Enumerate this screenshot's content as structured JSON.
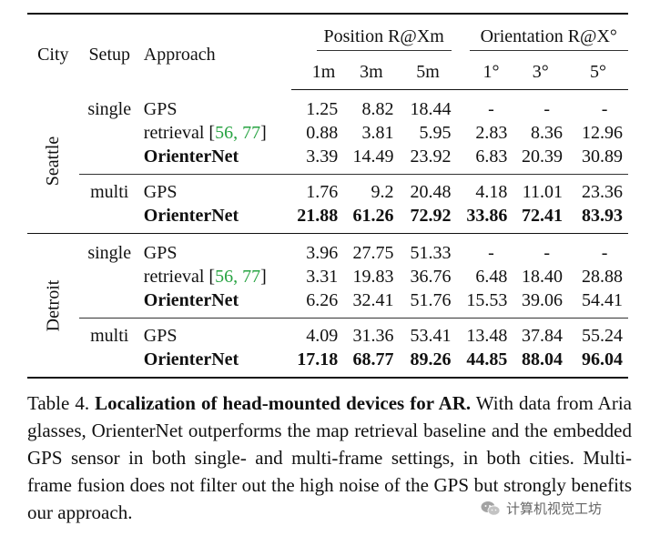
{
  "table": {
    "headers": {
      "city": "City",
      "setup": "Setup",
      "approach": "Approach",
      "position_group": "Position R@Xm",
      "orientation_group": "Orientation R@X°",
      "position_cols": [
        "1m",
        "3m",
        "5m"
      ],
      "orientation_cols": [
        "1°",
        "3°",
        "5°"
      ]
    },
    "cities": [
      {
        "name": "Seattle",
        "setups": [
          {
            "setup": "single",
            "rows": [
              {
                "approach": "GPS",
                "cite": "",
                "values": [
                  "1.25",
                  "8.82",
                  "18.44",
                  "-",
                  "-",
                  "-"
                ]
              },
              {
                "approach": "retrieval [",
                "cite": "56, 77",
                "cite_close": "]",
                "values": [
                  "0.88",
                  "3.81",
                  "5.95",
                  "2.83",
                  "8.36",
                  "12.96"
                ]
              },
              {
                "approach": "OrienterNet",
                "cite": "",
                "values": [
                  "3.39",
                  "14.49",
                  "23.92",
                  "6.83",
                  "20.39",
                  "30.89"
                ]
              }
            ]
          },
          {
            "setup": "multi",
            "rows": [
              {
                "approach": "GPS",
                "cite": "",
                "values": [
                  "1.76",
                  "9.2",
                  "20.48",
                  "4.18",
                  "11.01",
                  "23.36"
                ]
              },
              {
                "approach": "OrienterNet",
                "cite": "",
                "values": [
                  "21.88",
                  "61.26",
                  "72.92",
                  "33.86",
                  "72.41",
                  "83.93"
                ]
              }
            ]
          }
        ]
      },
      {
        "name": "Detroit",
        "setups": [
          {
            "setup": "single",
            "rows": [
              {
                "approach": "GPS",
                "cite": "",
                "values": [
                  "3.96",
                  "27.75",
                  "51.33",
                  "-",
                  "-",
                  "-"
                ]
              },
              {
                "approach": "retrieval [",
                "cite": "56, 77",
                "cite_close": "]",
                "values": [
                  "3.31",
                  "19.83",
                  "36.76",
                  "6.48",
                  "18.40",
                  "28.88"
                ]
              },
              {
                "approach": "OrienterNet",
                "cite": "",
                "values": [
                  "6.26",
                  "32.41",
                  "51.76",
                  "15.53",
                  "39.06",
                  "54.41"
                ]
              }
            ]
          },
          {
            "setup": "multi",
            "rows": [
              {
                "approach": "GPS",
                "cite": "",
                "values": [
                  "4.09",
                  "31.36",
                  "53.41",
                  "13.48",
                  "37.84",
                  "55.24"
                ]
              },
              {
                "approach": "OrienterNet",
                "cite": "",
                "values": [
                  "17.18",
                  "68.77",
                  "89.26",
                  "44.85",
                  "88.04",
                  "96.04"
                ]
              }
            ]
          }
        ]
      }
    ]
  },
  "caption": {
    "label": "Table 4. ",
    "title": "Localization of head-mounted devices for AR.",
    "body": " With data from Aria glasses, OrienterNet outperforms the map retrieval baseline and the embedded GPS sensor in both single- and multi-frame settings, in both cities. Multi-frame fusion does not filter out the high noise of the GPS but strongly benefits our approach."
  },
  "watermark": {
    "text": "计算机视觉工坊",
    "icon": "wechat-icon"
  }
}
